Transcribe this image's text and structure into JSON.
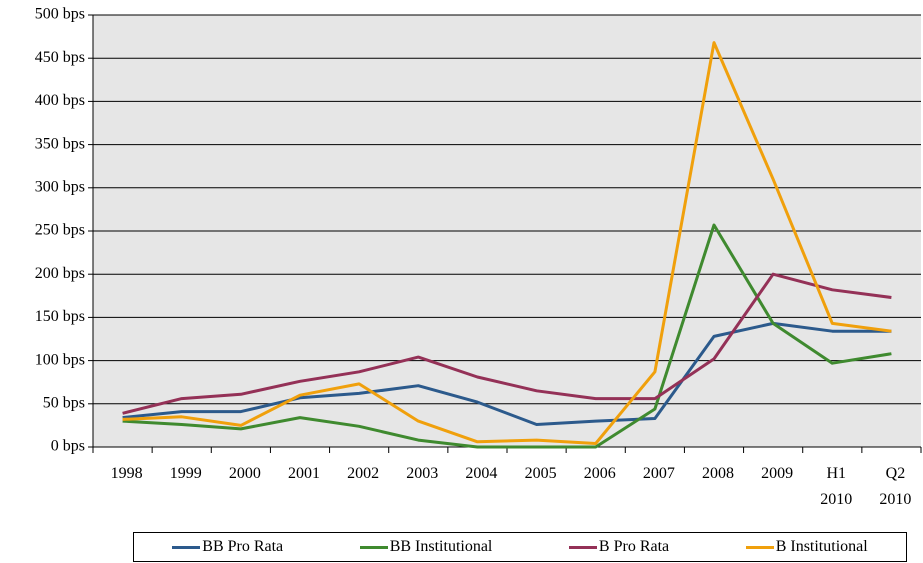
{
  "chart_data": {
    "type": "line",
    "categories": [
      "1998",
      "1999",
      "2000",
      "2001",
      "2002",
      "2003",
      "2004",
      "2005",
      "2006",
      "2007",
      "2008",
      "2009",
      "H1 2010",
      "Q2 2010"
    ],
    "series": [
      {
        "name": "BB Pro Rata",
        "color": "#2c5a8c",
        "values": [
          34,
          41,
          41,
          57,
          62,
          71,
          52,
          26,
          30,
          33,
          128,
          143,
          134,
          134
        ]
      },
      {
        "name": "BB Institutional",
        "color": "#3f8a2f",
        "values": [
          30,
          26,
          21,
          34,
          24,
          8,
          0,
          0,
          0,
          44,
          257,
          143,
          97,
          108
        ]
      },
      {
        "name": "B Pro Rata",
        "color": "#943157",
        "values": [
          39,
          56,
          61,
          76,
          87,
          104,
          81,
          65,
          56,
          56,
          102,
          200,
          182,
          173
        ]
      },
      {
        "name": "B Institutional",
        "color": "#f0a00c",
        "values": [
          32,
          35,
          25,
          60,
          73,
          30,
          6,
          8,
          4,
          87,
          468,
          310,
          143,
          134
        ]
      }
    ],
    "ylim": [
      0,
      500
    ],
    "yticks": [
      {
        "value": 0,
        "label": "0 bps"
      },
      {
        "value": 50,
        "label": "50 bps"
      },
      {
        "value": 100,
        "label": "100 bps"
      },
      {
        "value": 150,
        "label": "150 bps"
      },
      {
        "value": 200,
        "label": "200 bps"
      },
      {
        "value": 250,
        "label": "250 bps"
      },
      {
        "value": 300,
        "label": "300 bps"
      },
      {
        "value": 350,
        "label": "350 bps"
      },
      {
        "value": 400,
        "label": "400 bps"
      },
      {
        "value": 450,
        "label": "450 bps"
      },
      {
        "value": 500,
        "label": "500 bps"
      }
    ],
    "grid": true
  }
}
